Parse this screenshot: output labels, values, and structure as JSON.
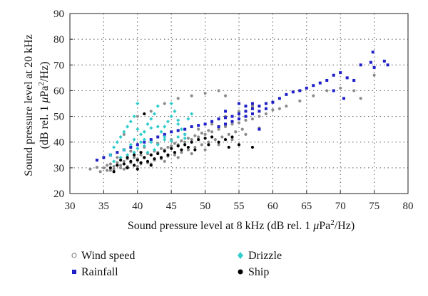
{
  "chart_data": {
    "type": "scatter",
    "xlabel_parts": [
      "Sound pressure level at 8 kHz (dB rel. 1 ",
      "μ",
      "Pa",
      "2",
      "/Hz)"
    ],
    "ylabel_line1": "Sound pressure level at 20 kHz",
    "ylabel_line2_parts": [
      "(dB rel. 1 ",
      "μ",
      "Pa",
      "2",
      "/Hz)"
    ],
    "xlim": [
      30,
      80
    ],
    "ylim": [
      20,
      90
    ],
    "xticks": [
      30,
      35,
      40,
      45,
      50,
      55,
      60,
      65,
      70,
      75,
      80
    ],
    "yticks": [
      20,
      30,
      40,
      50,
      60,
      70,
      80,
      90
    ],
    "grid": true,
    "legend_placement": "bottom",
    "series": [
      {
        "name": "Wind speed",
        "color": "#8c8c8c",
        "marker": "circle",
        "points": [
          [
            33.0,
            29.5
          ],
          [
            34.0,
            30.2
          ],
          [
            35.0,
            30.0
          ],
          [
            35.5,
            31.0
          ],
          [
            36.0,
            31.5
          ],
          [
            36.5,
            30.5
          ],
          [
            37.0,
            32.0
          ],
          [
            37.5,
            31.0
          ],
          [
            38.0,
            32.5
          ],
          [
            38.5,
            33.5
          ],
          [
            39.0,
            32.0
          ],
          [
            39.5,
            34.0
          ],
          [
            40.0,
            33.5
          ],
          [
            40.5,
            35.0
          ],
          [
            41.0,
            34.0
          ],
          [
            41.5,
            35.5
          ],
          [
            42.0,
            35.0
          ],
          [
            42.5,
            36.5
          ],
          [
            43.0,
            36.0
          ],
          [
            43.5,
            37.5
          ],
          [
            44.0,
            37.0
          ],
          [
            44.5,
            38.0
          ],
          [
            45.0,
            38.5
          ],
          [
            45.5,
            39.5
          ],
          [
            46.0,
            39.0
          ],
          [
            46.5,
            40.5
          ],
          [
            47.0,
            40.0
          ],
          [
            47.5,
            41.5
          ],
          [
            48.0,
            41.0
          ],
          [
            48.5,
            42.5
          ],
          [
            49.0,
            42.0
          ],
          [
            49.5,
            43.5
          ],
          [
            50.0,
            43.0
          ],
          [
            50.5,
            44.5
          ],
          [
            51.0,
            44.0
          ],
          [
            52.0,
            45.0
          ],
          [
            53.0,
            46.0
          ],
          [
            54.0,
            47.0
          ],
          [
            55.0,
            47.5
          ],
          [
            56.0,
            48.5
          ],
          [
            57.0,
            49.0
          ],
          [
            58.0,
            50.0
          ],
          [
            59.0,
            51.0
          ],
          [
            60.0,
            52.5
          ],
          [
            61.0,
            53.0
          ],
          [
            62.0,
            54.0
          ],
          [
            64.0,
            56.0
          ],
          [
            66.0,
            58.0
          ],
          [
            68.0,
            60.0
          ],
          [
            70.0,
            61.0
          ],
          [
            72.0,
            60.0
          ],
          [
            73.0,
            57.0
          ],
          [
            75.0,
            66.0
          ],
          [
            36.0,
            29.0
          ],
          [
            38.0,
            29.5
          ],
          [
            40.0,
            30.5
          ],
          [
            42.0,
            31.5
          ],
          [
            44.0,
            32.5
          ],
          [
            46.0,
            34.0
          ],
          [
            48.0,
            35.5
          ],
          [
            50.0,
            37.0
          ],
          [
            52.0,
            39.0
          ],
          [
            54.0,
            41.0
          ],
          [
            56.0,
            43.0
          ],
          [
            58.0,
            45.5
          ],
          [
            37.0,
            34.0
          ],
          [
            39.0,
            36.5
          ],
          [
            41.0,
            38.0
          ],
          [
            43.0,
            39.5
          ],
          [
            45.0,
            41.0
          ],
          [
            47.0,
            43.0
          ],
          [
            49.0,
            45.0
          ],
          [
            51.0,
            47.0
          ],
          [
            53.0,
            50.0
          ],
          [
            55.0,
            52.0
          ],
          [
            57.0,
            54.0
          ],
          [
            38.0,
            43.0
          ],
          [
            40.0,
            50.0
          ],
          [
            42.0,
            52.0
          ],
          [
            44.0,
            55.0
          ],
          [
            46.0,
            57.0
          ],
          [
            48.0,
            58.0
          ],
          [
            50.0,
            59.0
          ],
          [
            52.0,
            60.0
          ],
          [
            53.0,
            58.0
          ],
          [
            34.5,
            28.5
          ],
          [
            35.5,
            29.0
          ],
          [
            36.5,
            29.5
          ],
          [
            37.5,
            30.0
          ],
          [
            38.5,
            30.5
          ],
          [
            39.5,
            31.0
          ],
          [
            40.5,
            31.5
          ],
          [
            41.5,
            32.0
          ],
          [
            42.5,
            33.0
          ],
          [
            43.5,
            33.5
          ],
          [
            44.5,
            34.5
          ],
          [
            45.5,
            35.0
          ],
          [
            46.5,
            36.0
          ],
          [
            47.5,
            37.0
          ],
          [
            48.5,
            38.0
          ],
          [
            49.5,
            39.0
          ],
          [
            50.5,
            40.0
          ],
          [
            51.5,
            41.0
          ],
          [
            52.5,
            42.0
          ],
          [
            53.5,
            43.0
          ],
          [
            54.5,
            44.0
          ],
          [
            55.5,
            45.0
          ]
        ]
      },
      {
        "name": "Rainfall",
        "color": "#1f1fc8",
        "marker": "square",
        "points": [
          [
            34.0,
            33.0
          ],
          [
            35.0,
            34.0
          ],
          [
            36.0,
            35.0
          ],
          [
            37.0,
            36.0
          ],
          [
            38.0,
            37.0
          ],
          [
            39.0,
            38.0
          ],
          [
            40.0,
            39.0
          ],
          [
            41.0,
            40.0
          ],
          [
            42.0,
            41.0
          ],
          [
            43.0,
            42.0
          ],
          [
            44.0,
            43.0
          ],
          [
            45.0,
            44.0
          ],
          [
            46.0,
            44.5
          ],
          [
            47.0,
            45.0
          ],
          [
            48.0,
            46.0
          ],
          [
            49.0,
            46.5
          ],
          [
            50.0,
            47.0
          ],
          [
            51.0,
            48.0
          ],
          [
            52.0,
            49.0
          ],
          [
            53.0,
            49.5
          ],
          [
            54.0,
            50.0
          ],
          [
            55.0,
            51.0
          ],
          [
            56.0,
            52.0
          ],
          [
            57.0,
            53.0
          ],
          [
            58.0,
            54.0
          ],
          [
            59.0,
            55.0
          ],
          [
            52.0,
            46.0
          ],
          [
            53.0,
            47.0
          ],
          [
            54.0,
            48.0
          ],
          [
            55.0,
            49.0
          ],
          [
            56.0,
            50.0
          ],
          [
            57.0,
            51.0
          ],
          [
            58.0,
            52.0
          ],
          [
            59.0,
            53.0
          ],
          [
            60.0,
            55.5
          ],
          [
            61.0,
            57.0
          ],
          [
            62.0,
            58.5
          ],
          [
            63.0,
            59.5
          ],
          [
            64.0,
            60.0
          ],
          [
            65.0,
            61.0
          ],
          [
            66.0,
            62.0
          ],
          [
            67.0,
            63.0
          ],
          [
            68.0,
            64.0
          ],
          [
            69.0,
            66.0
          ],
          [
            70.0,
            67.0
          ],
          [
            71.0,
            65.0
          ],
          [
            72.0,
            64.0
          ],
          [
            73.0,
            70.0
          ],
          [
            74.5,
            71.0
          ],
          [
            74.8,
            75.0
          ],
          [
            75.0,
            69.0
          ],
          [
            76.5,
            71.5
          ],
          [
            77.0,
            70.0
          ],
          [
            70.5,
            57.0
          ],
          [
            69.0,
            60.0
          ],
          [
            58.0,
            45.0
          ],
          [
            53.0,
            52.0
          ],
          [
            55.0,
            55.0
          ],
          [
            56.0,
            54.0
          ],
          [
            57.0,
            55.0
          ]
        ]
      },
      {
        "name": "Drizzle",
        "color": "#33cccc",
        "marker": "diamond",
        "points": [
          [
            36.0,
            35.0
          ],
          [
            36.5,
            38.0
          ],
          [
            37.0,
            40.0
          ],
          [
            37.5,
            42.0
          ],
          [
            38.0,
            44.0
          ],
          [
            38.5,
            46.0
          ],
          [
            39.0,
            48.0
          ],
          [
            39.5,
            50.0
          ],
          [
            40.0,
            45.0
          ],
          [
            40.5,
            43.0
          ],
          [
            41.0,
            41.0
          ],
          [
            41.5,
            47.0
          ],
          [
            42.0,
            49.0
          ],
          [
            42.5,
            51.0
          ],
          [
            43.0,
            46.0
          ],
          [
            43.5,
            44.0
          ],
          [
            44.0,
            42.0
          ],
          [
            44.5,
            48.0
          ],
          [
            45.0,
            50.0
          ],
          [
            45.5,
            52.0
          ],
          [
            46.0,
            47.0
          ],
          [
            46.5,
            45.0
          ],
          [
            47.0,
            43.0
          ],
          [
            47.5,
            49.0
          ],
          [
            48.0,
            51.0
          ],
          [
            38.0,
            37.0
          ],
          [
            39.0,
            39.0
          ],
          [
            40.0,
            37.5
          ],
          [
            41.0,
            38.5
          ],
          [
            42.0,
            40.0
          ],
          [
            43.0,
            39.0
          ],
          [
            44.0,
            41.0
          ],
          [
            45.0,
            40.5
          ],
          [
            46.0,
            42.0
          ],
          [
            47.0,
            41.5
          ],
          [
            39.5,
            41.0
          ],
          [
            40.5,
            40.0
          ],
          [
            41.5,
            36.0
          ],
          [
            42.5,
            37.0
          ],
          [
            36.5,
            32.5
          ],
          [
            37.5,
            34.0
          ],
          [
            38.5,
            35.0
          ],
          [
            39.5,
            36.0
          ],
          [
            40.0,
            55.0
          ],
          [
            43.0,
            54.0
          ],
          [
            45.0,
            55.0
          ],
          [
            41.0,
            44.0
          ],
          [
            42.0,
            45.5
          ],
          [
            44.0,
            46.0
          ],
          [
            46.0,
            48.5
          ]
        ]
      },
      {
        "name": "Ship",
        "color": "#000000",
        "marker": "circle",
        "points": [
          [
            36.0,
            30.0
          ],
          [
            37.0,
            31.0
          ],
          [
            38.0,
            31.5
          ],
          [
            39.0,
            32.5
          ],
          [
            40.0,
            33.0
          ],
          [
            41.0,
            34.0
          ],
          [
            42.0,
            35.0
          ],
          [
            43.0,
            35.5
          ],
          [
            44.0,
            36.5
          ],
          [
            45.0,
            37.5
          ],
          [
            46.0,
            38.5
          ],
          [
            47.0,
            39.0
          ],
          [
            48.0,
            40.0
          ],
          [
            49.0,
            41.0
          ],
          [
            50.0,
            41.5
          ],
          [
            51.0,
            42.0
          ],
          [
            52.0,
            40.0
          ],
          [
            53.0,
            41.0
          ],
          [
            54.0,
            42.0
          ],
          [
            55.0,
            39.0
          ],
          [
            57.0,
            38.0
          ],
          [
            38.5,
            30.0
          ],
          [
            39.5,
            31.0
          ],
          [
            40.5,
            32.0
          ],
          [
            41.5,
            32.5
          ],
          [
            42.5,
            33.5
          ],
          [
            43.5,
            34.0
          ],
          [
            44.5,
            35.0
          ],
          [
            45.5,
            36.0
          ],
          [
            46.5,
            37.0
          ],
          [
            47.5,
            38.0
          ],
          [
            37.5,
            33.0
          ],
          [
            38.5,
            34.0
          ],
          [
            39.5,
            35.0
          ],
          [
            40.5,
            36.0
          ],
          [
            41.0,
            51.0
          ],
          [
            36.5,
            28.5
          ],
          [
            40.0,
            29.5
          ],
          [
            42.0,
            31.0
          ],
          [
            48.5,
            37.0
          ],
          [
            50.5,
            39.0
          ],
          [
            53.5,
            38.0
          ]
        ]
      }
    ]
  }
}
